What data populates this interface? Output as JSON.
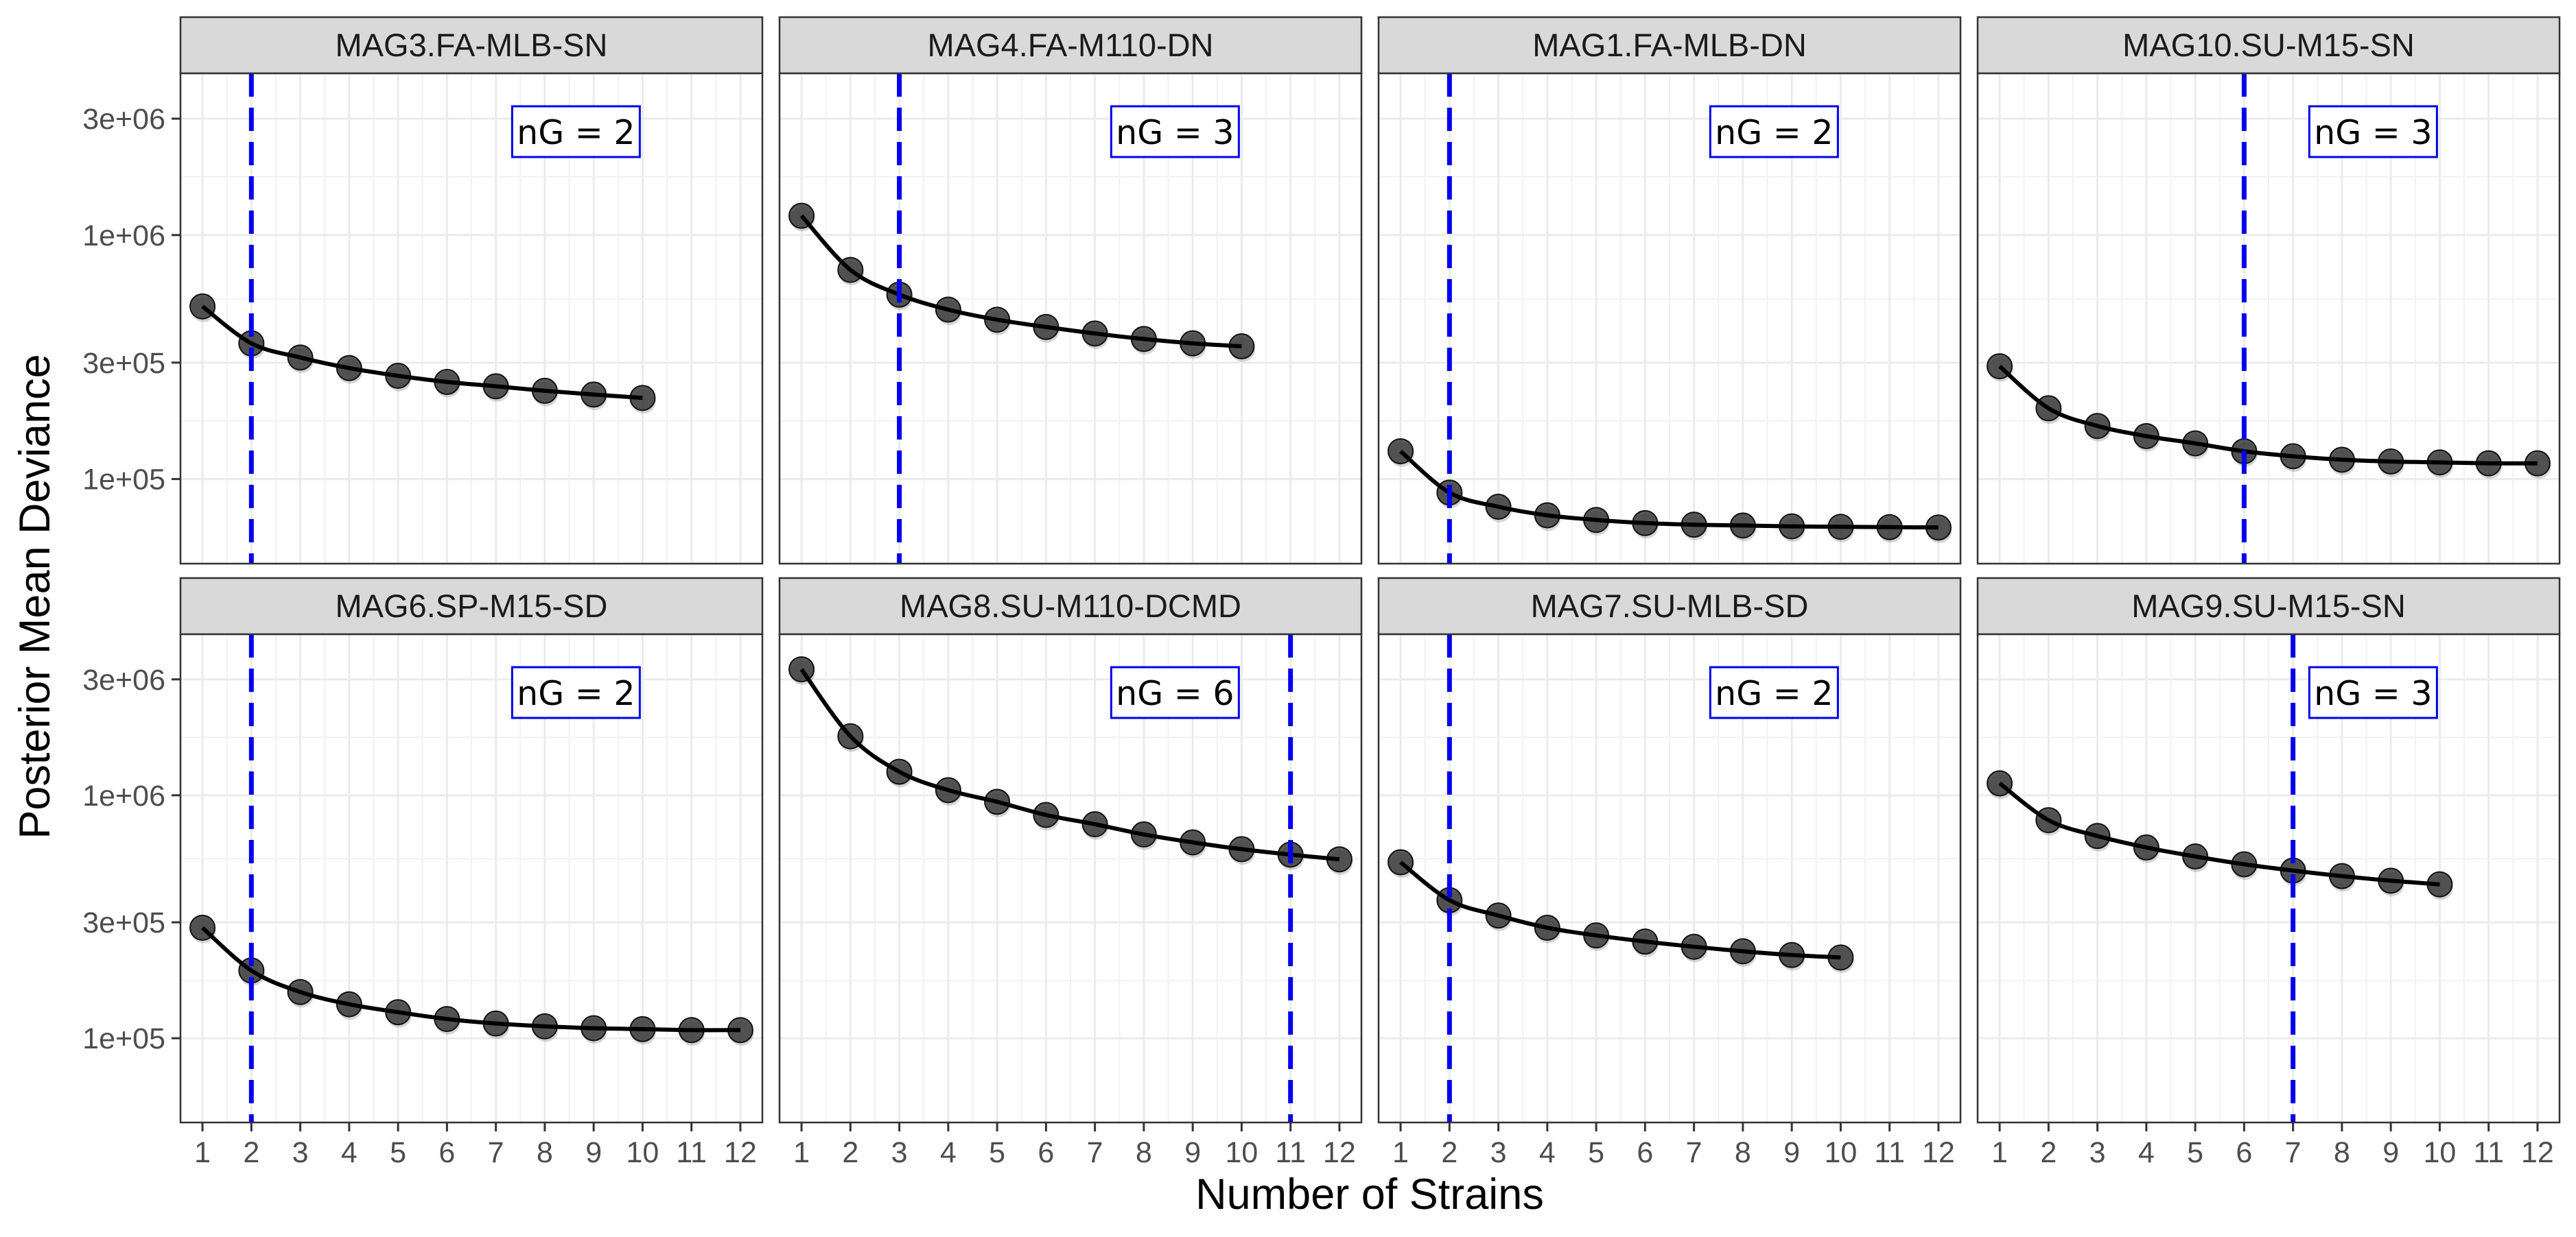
{
  "chart_data": {
    "type": "scatter",
    "ylabel": "Posterior Mean Deviance",
    "xlabel": "Number of Strains",
    "y_scale": "log10",
    "ylim": [
      45000,
      4600000
    ],
    "y_ticks": [
      100000,
      300000,
      1000000,
      3000000
    ],
    "y_tick_labels": [
      "1e+05",
      "3e+05",
      "1e+06",
      "3e+06"
    ],
    "xlim": [
      0.55,
      12.45
    ],
    "x_ticks": [
      1,
      2,
      3,
      4,
      5,
      6,
      7,
      8,
      9,
      10,
      11,
      12
    ],
    "x_tick_labels": [
      "1",
      "2",
      "3",
      "4",
      "5",
      "6",
      "7",
      "8",
      "9",
      "10",
      "11",
      "12"
    ],
    "grid": true,
    "legend": "none",
    "layout": "2 rows x 4 facets",
    "colors": {
      "vline": "#0000ee",
      "point_fill": "#3a3a3a",
      "curve": "#000000",
      "strip_bg": "#d9d9d9",
      "grid": "#ebebeb"
    },
    "panels": [
      {
        "title": "MAG3.FA-MLB-SN",
        "label": "nG = 2",
        "vline": 2,
        "x": [
          1,
          2,
          3,
          4,
          5,
          6,
          7,
          8,
          9,
          10
        ],
        "y": [
          510000,
          360000,
          315000,
          285000,
          265000,
          250000,
          240000,
          230000,
          222000,
          215000
        ]
      },
      {
        "title": "MAG4.FA-M110-DN",
        "label": "nG = 3",
        "vline": 3,
        "x": [
          1,
          2,
          3,
          4,
          5,
          6,
          7,
          8,
          9,
          10
        ],
        "y": [
          1200000,
          720000,
          570000,
          495000,
          450000,
          420000,
          395000,
          375000,
          360000,
          350000
        ]
      },
      {
        "title": "MAG1.FA-MLB-DN",
        "label": "nG = 2",
        "vline": 2,
        "x": [
          1,
          2,
          3,
          4,
          5,
          6,
          7,
          8,
          9,
          10,
          11,
          12
        ],
        "y": [
          130000,
          88000,
          77000,
          71000,
          68000,
          66000,
          65000,
          64500,
          64000,
          63700,
          63500,
          63300
        ]
      },
      {
        "title": "MAG10.SU-M15-SN",
        "label": "nG = 3",
        "vline": 6,
        "x": [
          1,
          2,
          3,
          4,
          5,
          6,
          7,
          8,
          9,
          10,
          11,
          12
        ],
        "y": [
          290000,
          195000,
          165000,
          150000,
          140000,
          130000,
          124000,
          120000,
          118000,
          117000,
          116000,
          116000
        ]
      },
      {
        "title": "MAG6.SP-M15-SD",
        "label": "nG = 2",
        "vline": 2,
        "x": [
          1,
          2,
          3,
          4,
          5,
          6,
          7,
          8,
          9,
          10,
          11,
          12
        ],
        "y": [
          285000,
          190000,
          155000,
          138000,
          128000,
          120000,
          115000,
          112000,
          110000,
          109000,
          108000,
          108000
        ]
      },
      {
        "title": "MAG8.SU-M110-DCMD",
        "label": "nG = 6",
        "vline": 11,
        "x": [
          1,
          2,
          3,
          4,
          5,
          6,
          7,
          8,
          9,
          10,
          11,
          12
        ],
        "y": [
          3300000,
          1750000,
          1250000,
          1050000,
          940000,
          830000,
          760000,
          690000,
          640000,
          600000,
          570000,
          545000
        ]
      },
      {
        "title": "MAG7.SU-MLB-SD",
        "label": "nG = 2",
        "vline": 2,
        "x": [
          1,
          2,
          3,
          4,
          5,
          6,
          7,
          8,
          9,
          10
        ],
        "y": [
          530000,
          370000,
          320000,
          285000,
          265000,
          250000,
          238000,
          228000,
          220000,
          215000
        ]
      },
      {
        "title": "MAG9.SU-M15-SN",
        "label": "nG = 3",
        "vline": 7,
        "x": [
          1,
          2,
          3,
          4,
          5,
          6,
          7,
          8,
          9,
          10
        ],
        "y": [
          1120000,
          790000,
          680000,
          610000,
          560000,
          520000,
          490000,
          465000,
          445000,
          430000
        ]
      }
    ]
  }
}
